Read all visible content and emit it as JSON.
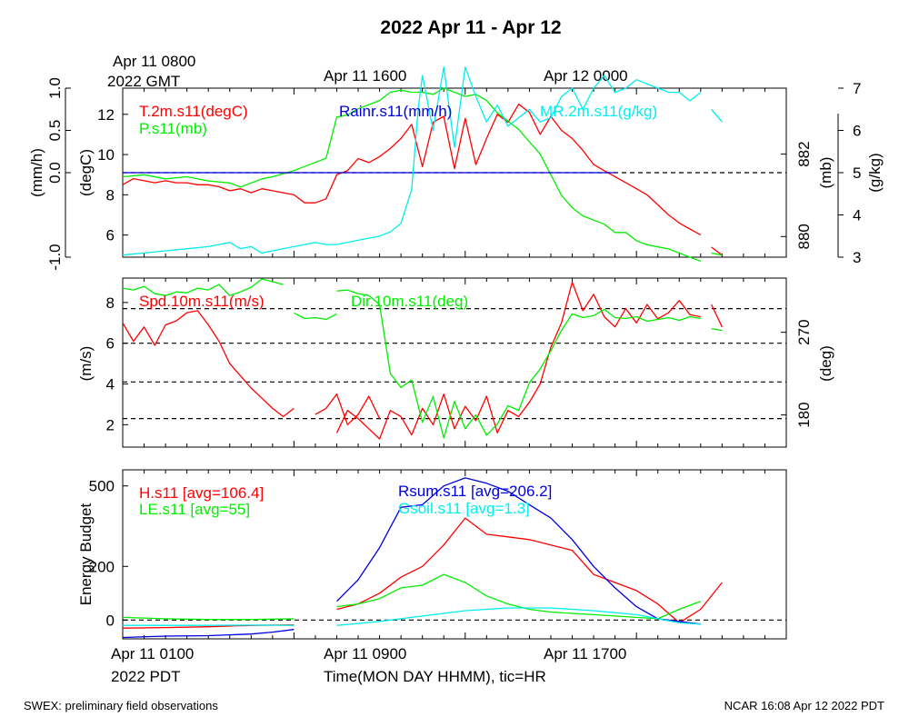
{
  "title": "2022 Apr 11 - Apr 12",
  "top_time_labels": {
    "gmt_first_line1": "Apr 11 0800",
    "gmt_first_line2": "2022 GMT",
    "gmt_second": "Apr 11 1600",
    "gmt_third": "Apr 12 0000"
  },
  "bottom_time_labels": {
    "pdt_first": "Apr 11 0100",
    "pdt_year": "2022 PDT",
    "pdt_second": "Apr 11 0900",
    "pdt_third": "Apr 11 1700",
    "xlabel": "Time(MON DAY HHMM), tic=HR"
  },
  "footer": {
    "left": "SWEX: preliminary field observations",
    "right": "NCAR 16:08 Apr 12 2022 PDT"
  },
  "colors": {
    "red": "#ff0000",
    "green": "#00ee00",
    "blue": "#0000dd",
    "cyan": "#00eeee",
    "black": "#000000"
  },
  "chart_data": [
    {
      "type": "line",
      "panel": "top",
      "x_unit": "hours since Apr 11 0100 PDT",
      "xlim": [
        0,
        31
      ],
      "left_axis_outer": {
        "label": "(mm/h)",
        "ticks": [
          "-1.0",
          "0.0",
          "0.5",
          "1.0"
        ],
        "ylim": [
          -1.0,
          1.0
        ]
      },
      "left_axis_inner": {
        "label": "(degC)",
        "ticks": [
          "6",
          "8",
          "10",
          "12"
        ],
        "ylim": [
          4.9,
          13.3
        ]
      },
      "right_axis_inner": {
        "label": "(mb)",
        "ticks": [
          "880",
          "882"
        ],
        "ylim": [
          879.5,
          883.6
        ]
      },
      "right_axis_outer": {
        "label": "(g/kg)",
        "ticks": [
          "3",
          "4",
          "5",
          "6",
          "7"
        ],
        "ylim": [
          3.0,
          7.0
        ]
      },
      "series": [
        {
          "name": "T.2m.s11(degC)",
          "color": "red",
          "axis": "degC",
          "x": [
            0,
            0.5,
            1,
            1.5,
            2,
            2.5,
            3,
            3.5,
            4,
            4.5,
            5,
            5.5,
            6,
            6.5,
            7,
            8,
            8.5,
            9,
            9.5,
            10,
            10.5,
            11,
            11.5,
            12,
            12.5,
            13,
            13.5,
            14,
            14.5,
            15,
            15.5,
            16,
            16.5,
            17,
            17.5,
            18,
            18.5,
            19,
            19.5,
            20,
            20.5,
            21,
            21.5,
            22,
            22.5,
            23,
            23.5,
            24,
            24.5,
            25,
            25.5,
            26,
            26.5,
            27
          ],
          "y": [
            8.5,
            8.8,
            8.7,
            8.6,
            8.7,
            8.6,
            8.6,
            8.5,
            8.5,
            8.4,
            8.2,
            8.3,
            8.1,
            8.3,
            8.2,
            8.0,
            7.6,
            7.6,
            7.8,
            9.0,
            9.2,
            9.8,
            9.6,
            9.9,
            10.3,
            10.8,
            11.5,
            9.4,
            11.6,
            11.9,
            9.3,
            11.8,
            9.5,
            10.8,
            12.0,
            11.6,
            12.5,
            12.1,
            11.0,
            11.9,
            11.2,
            10.8,
            10.2,
            9.5,
            9.2,
            8.9,
            8.6,
            8.3,
            8.0,
            7.5,
            7.0,
            6.6,
            6.3,
            6.0
          ]
        },
        {
          "name": "",
          "color": "red",
          "axis": "degC",
          "x": [
            27.5,
            28
          ],
          "y": [
            5.4,
            5.0
          ]
        },
        {
          "name": "P.s11(mb)",
          "color": "green",
          "axis": "mb",
          "x": [
            0,
            1,
            2,
            3,
            4,
            5,
            5.5,
            6,
            6.5,
            7,
            8,
            8.5,
            9,
            9.5,
            10,
            10.5,
            11,
            11.5,
            12,
            12.5,
            13,
            13.5,
            14,
            14.5,
            15,
            15.5,
            16,
            16.5,
            17,
            17.5,
            18,
            18.5,
            19,
            19.5,
            20,
            20.5,
            21,
            21.5,
            22,
            22.5,
            23,
            23.5,
            24,
            24.5,
            25,
            25.5,
            26,
            26.5,
            27
          ],
          "y": [
            881.45,
            881.5,
            881.4,
            881.45,
            881.35,
            881.3,
            881.2,
            881.3,
            881.4,
            881.45,
            881.6,
            881.7,
            881.8,
            881.9,
            882.9,
            882.95,
            883.1,
            883.2,
            883.3,
            883.5,
            883.55,
            883.5,
            883.5,
            883.45,
            883.6,
            883.5,
            883.4,
            883.45,
            883.3,
            883.0,
            882.8,
            882.6,
            882.3,
            882.0,
            881.5,
            881.0,
            880.7,
            880.5,
            880.4,
            880.3,
            880.1,
            880.1,
            879.9,
            879.8,
            879.75,
            879.7,
            879.6,
            879.5,
            879.4
          ]
        },
        {
          "name": "",
          "color": "green",
          "axis": "mb",
          "x": [
            27.5,
            28
          ],
          "y": [
            879.6,
            879.55
          ]
        },
        {
          "name": "Rainr.s11(mm/h)",
          "color": "blue",
          "axis": "mm/h",
          "x": [
            0,
            6,
            7,
            8,
            9,
            10,
            23
          ],
          "y": [
            0,
            0,
            0,
            0,
            0,
            0,
            0
          ]
        },
        {
          "name": "MR.2m.s11(g/kg)",
          "color": "cyan",
          "axis": "g/kg",
          "x": [
            0,
            1,
            2,
            3,
            4,
            5,
            5.5,
            6,
            6.5,
            7,
            8,
            8.5,
            9,
            9.5,
            10,
            10.5,
            11,
            11.5,
            12,
            12.5,
            13,
            13.5,
            13.8,
            14,
            14.5,
            15,
            15.5,
            16,
            16.5,
            17,
            17.5,
            18,
            18.5,
            19,
            19.5,
            20,
            20.5,
            21,
            21.5,
            22,
            22.5,
            23,
            23.5,
            24,
            24.5,
            25,
            25.5,
            26,
            26.5,
            27
          ],
          "y": [
            3.05,
            3.1,
            3.15,
            3.2,
            3.25,
            3.35,
            3.2,
            3.25,
            3.1,
            3.15,
            3.25,
            3.3,
            3.35,
            3.3,
            3.3,
            3.35,
            3.4,
            3.45,
            3.5,
            3.6,
            3.8,
            4.6,
            6.5,
            7.3,
            6.0,
            7.5,
            5.6,
            7.5,
            6.8,
            6.2,
            6.6,
            6.1,
            6.3,
            6.5,
            6.2,
            6.3,
            6.8,
            7.0,
            6.5,
            7.0,
            7.3,
            6.9,
            7.0,
            7.2,
            7.1,
            7.0,
            6.9,
            6.9,
            6.7,
            6.9
          ]
        },
        {
          "name": "",
          "color": "cyan",
          "axis": "g/kg",
          "x": [
            27.5,
            28
          ],
          "y": [
            6.5,
            6.2
          ]
        }
      ],
      "zero_line": "dashed"
    },
    {
      "type": "line",
      "panel": "middle",
      "x_unit": "hours since Apr 11 0100 PDT",
      "xlim": [
        0,
        31
      ],
      "left_axis": {
        "label": "(m/s)",
        "ticks": [
          "2",
          "4",
          "6",
          "8"
        ],
        "ylim": [
          0.9,
          9.2
        ]
      },
      "right_axis": {
        "label": "(deg)",
        "ticks": [
          "180",
          "270"
        ],
        "ylim": [
          145,
          329
        ]
      },
      "gridlines_ms": [
        2.3,
        4.1,
        6.0,
        7.7
      ],
      "series": [
        {
          "name": "Spd.10m.s11(m/s)",
          "color": "red",
          "axis": "m/s",
          "x": [
            0,
            0.5,
            1,
            1.5,
            2,
            2.5,
            3,
            3.5,
            4,
            4.5,
            5,
            5.5,
            6,
            6.5,
            7,
            7.5,
            8
          ],
          "y": [
            7.0,
            6.1,
            6.8,
            5.9,
            6.9,
            7.1,
            7.5,
            7.6,
            6.9,
            6.1,
            5.0,
            4.4,
            3.8,
            3.3,
            2.8,
            2.4,
            2.8
          ]
        },
        {
          "name": "",
          "color": "red",
          "axis": "m/s",
          "x": [
            9,
            9.5,
            10,
            10.5,
            11,
            11.5,
            12
          ],
          "y": [
            2.5,
            2.8,
            3.5,
            2.0,
            2.5,
            3.4,
            2.3
          ]
        },
        {
          "name": "",
          "color": "red",
          "axis": "m/s",
          "x": [
            10,
            10.5,
            11,
            11.5,
            12,
            12.5,
            13,
            13.5,
            14,
            14.5,
            15,
            15.5,
            16,
            16.5,
            17,
            17.5,
            18,
            18.5,
            19,
            19.5,
            20,
            20.5,
            21,
            21.5,
            22,
            22.5,
            23,
            23.5,
            24,
            24.5,
            25,
            25.5,
            26,
            26.5,
            27
          ],
          "y": [
            1.6,
            2.7,
            2.3,
            1.8,
            1.3,
            2.7,
            2.4,
            1.5,
            2.8,
            2.0,
            3.5,
            1.8,
            2.9,
            2.2,
            3.4,
            1.6,
            2.7,
            2.4,
            3.1,
            4.0,
            5.8,
            7.0,
            9.0,
            7.6,
            8.4,
            7.3,
            6.8,
            7.7,
            7.0,
            7.9,
            7.2,
            7.5,
            8.1,
            7.4,
            7.3
          ]
        },
        {
          "name": "",
          "color": "red",
          "axis": "m/s",
          "x": [
            27.5,
            28
          ],
          "y": [
            7.9,
            6.8
          ]
        },
        {
          "name": "Dir.10m.s11(deg)",
          "color": "green",
          "axis": "deg",
          "x": [
            0,
            0.5,
            1,
            1.5,
            2,
            2.5,
            3,
            3.5,
            4,
            4.5,
            5,
            5.5,
            6,
            6.5,
            7,
            7.5
          ],
          "y": [
            318,
            316,
            320,
            312,
            310,
            314,
            313,
            318,
            316,
            322,
            310,
            314,
            319,
            328,
            325,
            322
          ]
        },
        {
          "name": "",
          "color": "green",
          "axis": "deg",
          "x": [
            8,
            8.5,
            9,
            9.5,
            10
          ],
          "y": [
            291,
            285,
            286,
            284,
            290
          ]
        },
        {
          "name": "",
          "color": "green",
          "axis": "deg",
          "x": [
            10,
            10.5,
            11,
            11.5,
            12,
            12.5,
            13,
            13.5,
            14,
            14.5,
            15,
            15.5,
            16,
            16.5,
            17,
            17.5,
            18,
            18.5,
            19,
            19.5,
            20,
            20.5,
            21,
            21.5,
            22,
            22.5,
            23,
            23.5,
            24,
            24.5,
            25,
            25.5,
            26,
            26.5,
            27
          ],
          "y": [
            315,
            316,
            312,
            310,
            300,
            225,
            210,
            218,
            172,
            200,
            155,
            195,
            165,
            180,
            158,
            170,
            190,
            185,
            215,
            230,
            250,
            272,
            290,
            286,
            288,
            295,
            286,
            285,
            287,
            282,
            284,
            286,
            283,
            287,
            285
          ]
        },
        {
          "name": "",
          "color": "green",
          "axis": "deg",
          "x": [
            27.5,
            28
          ],
          "y": [
            274,
            272
          ]
        }
      ]
    },
    {
      "type": "line",
      "panel": "bottom",
      "x_unit": "hours since Apr 11 0100 PDT",
      "xlim": [
        0,
        31
      ],
      "ylabel": "Energy Budget",
      "ylim": [
        -70,
        560
      ],
      "yticks": [
        "0",
        "200",
        "500"
      ],
      "zero_line": "dashed",
      "series": [
        {
          "name": "H.s11 [avg=106.4]",
          "color": "red",
          "x": [
            0,
            2,
            4,
            6,
            8
          ],
          "y": [
            -30,
            -28,
            -25,
            -20,
            -18
          ]
        },
        {
          "name": "",
          "color": "red",
          "x": [
            10,
            11,
            12,
            13,
            14,
            15,
            16,
            17,
            18,
            19,
            20,
            21,
            22,
            23,
            24,
            25,
            26,
            27,
            28
          ],
          "y": [
            40,
            60,
            100,
            160,
            200,
            280,
            380,
            320,
            310,
            300,
            280,
            260,
            170,
            140,
            110,
            60,
            -10,
            40,
            140
          ]
        },
        {
          "name": "LE.s11 [avg=55]",
          "color": "green",
          "x": [
            0,
            2,
            4,
            6,
            8
          ],
          "y": [
            10,
            5,
            2,
            2,
            5
          ]
        },
        {
          "name": "",
          "color": "green",
          "x": [
            10,
            11,
            12,
            13,
            14,
            15,
            16,
            17,
            18,
            19,
            20,
            21,
            22,
            23,
            24,
            25,
            26,
            27
          ],
          "y": [
            50,
            60,
            80,
            120,
            130,
            170,
            140,
            90,
            60,
            40,
            30,
            25,
            20,
            15,
            10,
            5,
            40,
            70
          ]
        },
        {
          "name": "Rsum.s11 [avg=206.2]",
          "color": "blue",
          "x": [
            0,
            2,
            4,
            6,
            7,
            8
          ],
          "y": [
            -65,
            -60,
            -58,
            -52,
            -45,
            -35
          ]
        },
        {
          "name": "",
          "color": "blue",
          "x": [
            10,
            11,
            12,
            13,
            14,
            15,
            16,
            17,
            18,
            19,
            20,
            21,
            22,
            23,
            24,
            25,
            26,
            27
          ],
          "y": [
            70,
            150,
            270,
            420,
            430,
            500,
            530,
            510,
            480,
            430,
            380,
            300,
            200,
            120,
            50,
            5,
            -5,
            -15
          ]
        },
        {
          "name": "Gsoil.s11 [avg=1.3]",
          "color": "cyan",
          "x": [
            0,
            2,
            4,
            6,
            8
          ],
          "y": [
            -20,
            -20,
            -20,
            -19,
            -20
          ]
        },
        {
          "name": "",
          "color": "cyan",
          "x": [
            10,
            12,
            14,
            16,
            18,
            20,
            22,
            24,
            26,
            27
          ],
          "y": [
            -20,
            -5,
            15,
            35,
            45,
            45,
            35,
            20,
            -10,
            -15
          ]
        }
      ]
    }
  ]
}
